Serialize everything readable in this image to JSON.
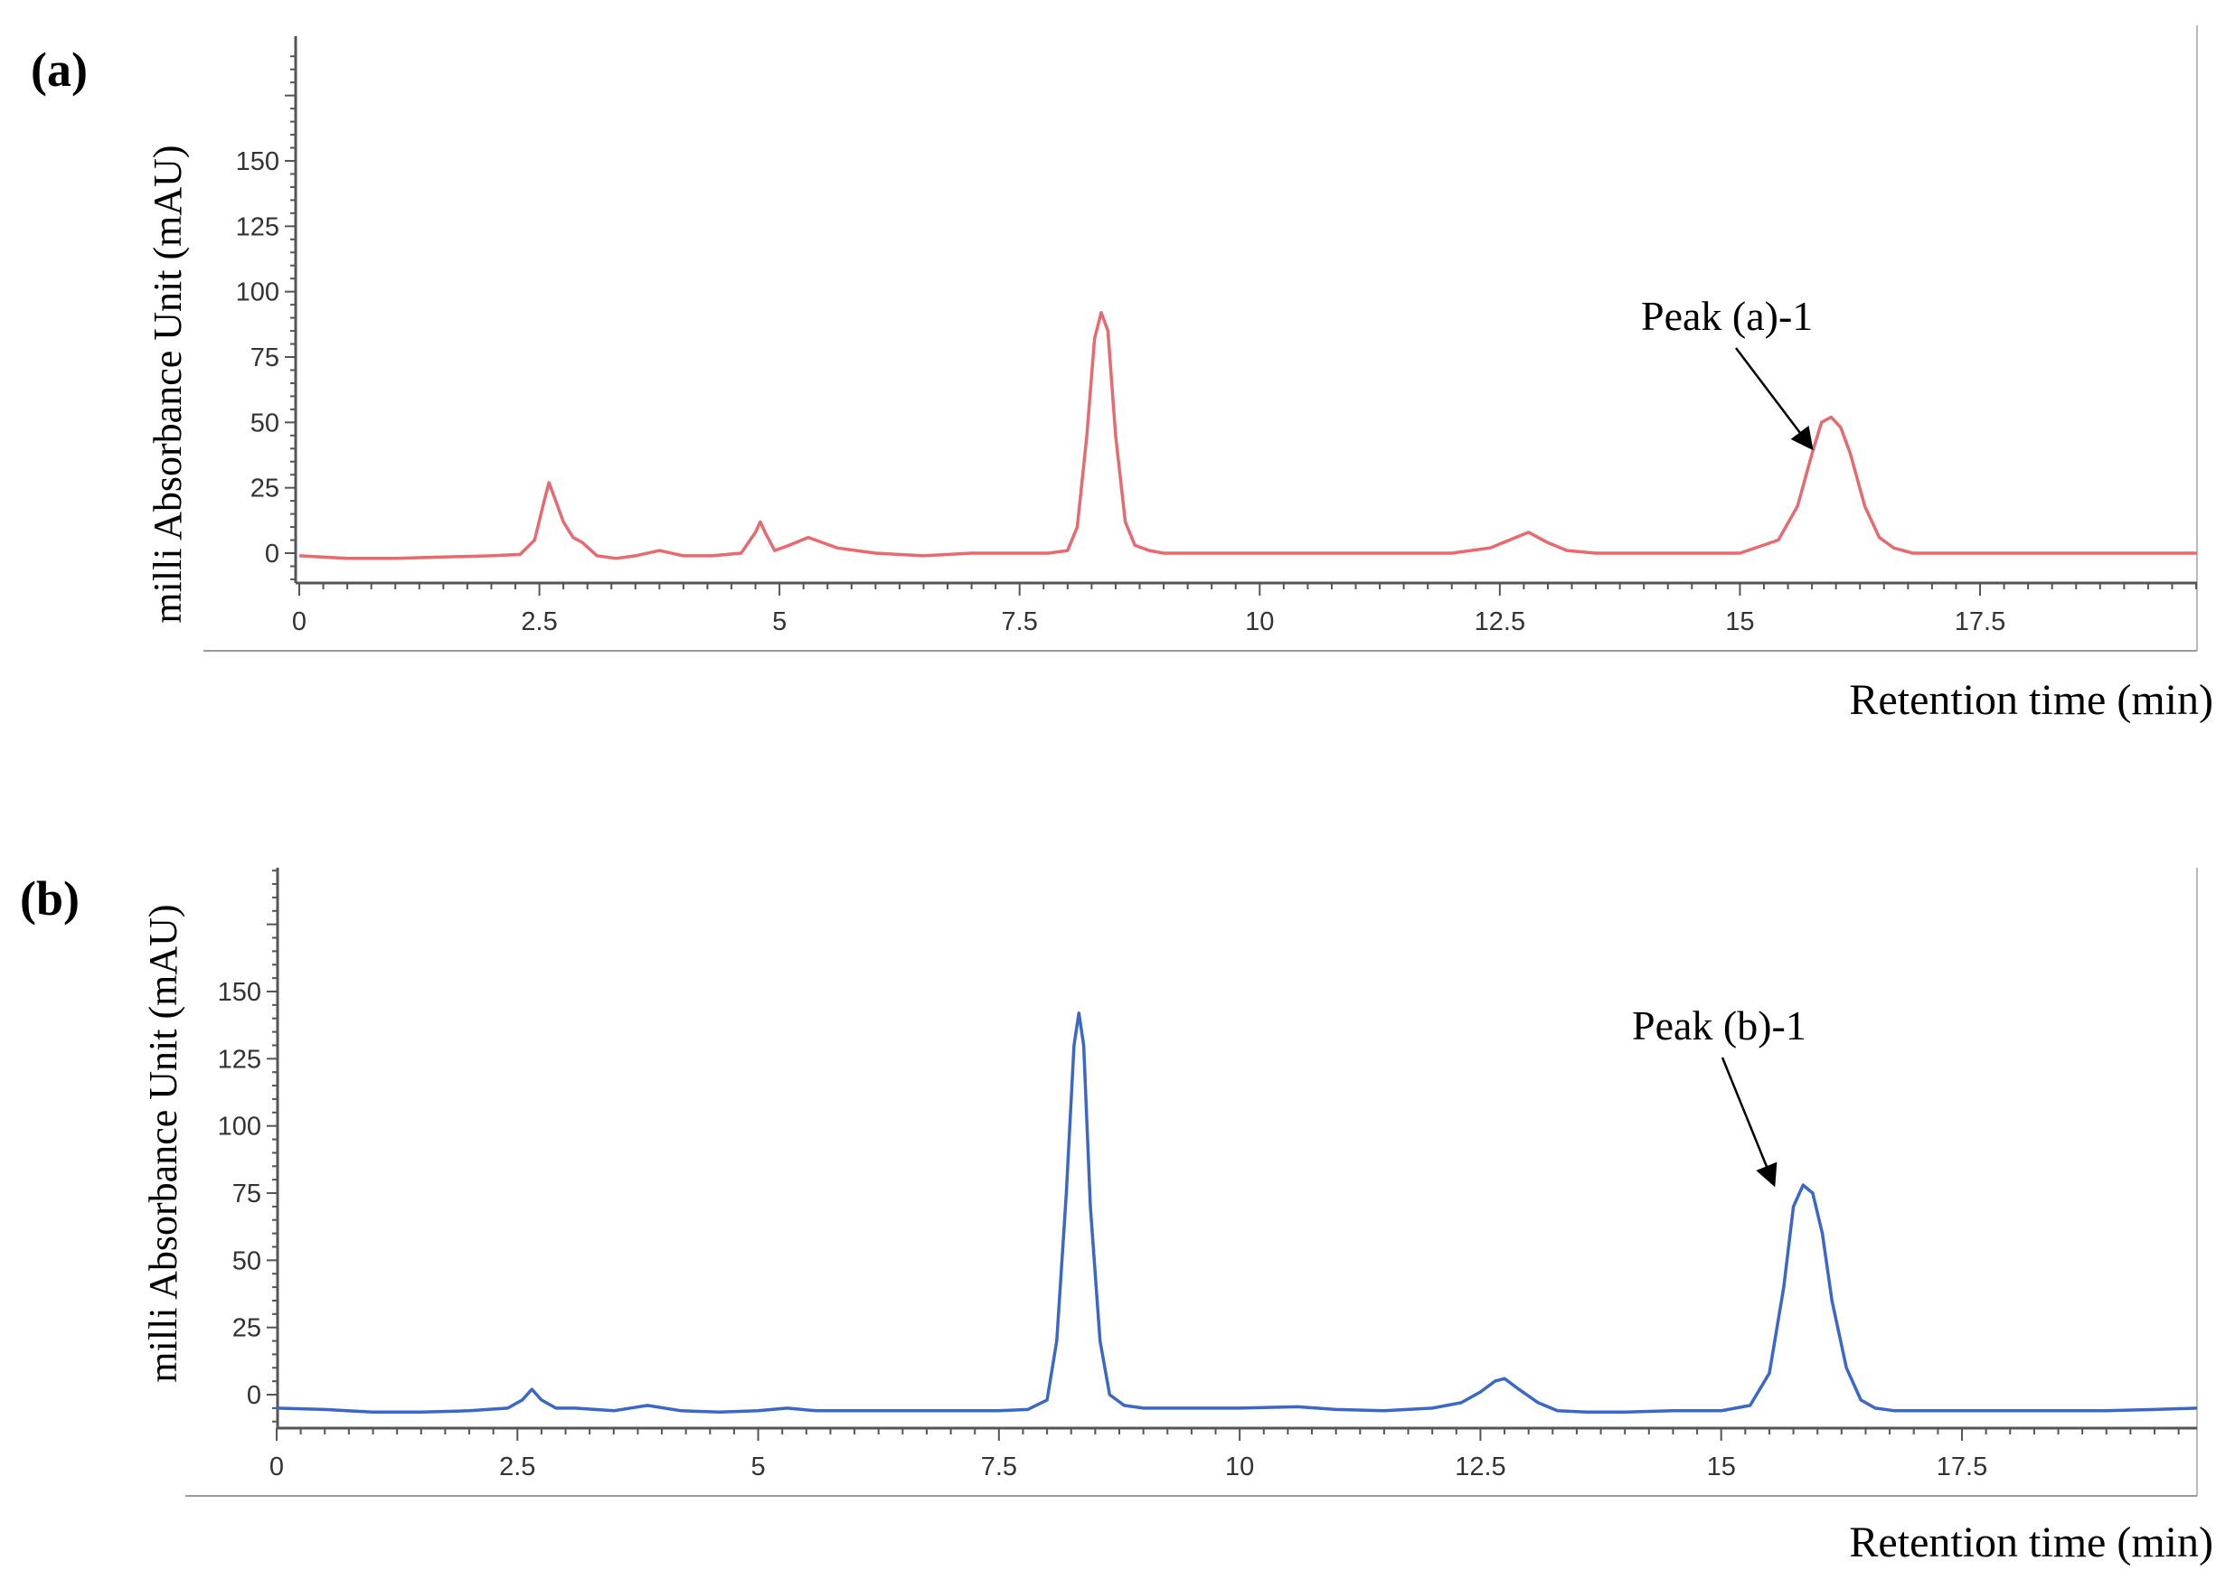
{
  "chart_data": [
    {
      "type": "line",
      "panel_label": "(a)",
      "xlabel": "Retention time (min)",
      "ylabel": "milli Absorbance Unit (mAU)",
      "xlim": [
        0,
        20
      ],
      "ylim": [
        -12,
        190
      ],
      "x_ticks": [
        0,
        2.5,
        5,
        7.5,
        10,
        12.5,
        15,
        17.5
      ],
      "x_tick_labels": [
        "0",
        "2.5",
        "5",
        "7.5",
        "10",
        "12.5",
        "15",
        "17.5"
      ],
      "y_ticks": [
        0,
        25,
        50,
        75,
        100,
        125,
        150
      ],
      "y_tick_labels": [
        "0",
        "25",
        "50",
        "75",
        "100",
        "125",
        "150"
      ],
      "grid": false,
      "series": [
        {
          "color": "#e8696e",
          "x": [
            0,
            0.5,
            1,
            1.5,
            2,
            2.3,
            2.45,
            2.55,
            2.6,
            2.65,
            2.75,
            2.85,
            2.95,
            3.1,
            3.3,
            3.5,
            3.75,
            4.0,
            4.3,
            4.6,
            4.75,
            4.8,
            4.85,
            4.95,
            5.1,
            5.3,
            5.45,
            5.6,
            5.8,
            6.0,
            6.5,
            7.0,
            7.2,
            7.5,
            7.8,
            8.0,
            8.1,
            8.2,
            8.28,
            8.35,
            8.42,
            8.5,
            8.6,
            8.7,
            8.85,
            9.0,
            9.5,
            10,
            11,
            12,
            12.4,
            12.6,
            12.8,
            13.0,
            13.2,
            13.5,
            14,
            14.5,
            15.0,
            15.4,
            15.6,
            15.75,
            15.85,
            15.95,
            16.05,
            16.15,
            16.3,
            16.45,
            16.6,
            16.8,
            17.0,
            17.5,
            18,
            18.5,
            19,
            19.5,
            20
          ],
          "y": [
            -1,
            -2,
            -2,
            -1.5,
            -1,
            -0.5,
            5,
            20,
            27,
            22,
            12,
            6,
            4,
            -1,
            -2,
            -1,
            1,
            -1,
            -1,
            0,
            8,
            12,
            8,
            1,
            3,
            6,
            4,
            2,
            1,
            0,
            -1,
            0,
            0,
            0,
            0,
            1,
            10,
            45,
            82,
            92,
            85,
            45,
            12,
            3,
            1,
            0,
            0,
            0,
            0,
            0,
            2,
            5,
            8,
            4,
            1,
            0,
            0,
            0,
            0,
            5,
            18,
            38,
            50,
            52,
            48,
            38,
            18,
            6,
            2,
            0,
            0,
            0,
            0,
            0,
            0,
            0,
            0
          ]
        }
      ],
      "annotations": [
        {
          "text": "Peak (a)-1",
          "points_to_x": 15.75,
          "points_to_y": 40
        }
      ]
    },
    {
      "type": "line",
      "panel_label": "(b)",
      "xlabel": "Retention time (min)",
      "ylabel": "milli Absorbance Unit (mAU)",
      "xlim": [
        0,
        20
      ],
      "ylim": [
        -12,
        200
      ],
      "x_ticks": [
        0,
        2.5,
        5,
        7.5,
        10,
        12.5,
        15,
        17.5
      ],
      "x_tick_labels": [
        "0",
        "2.5",
        "5",
        "7.5",
        "10",
        "12.5",
        "15",
        "17.5"
      ],
      "y_ticks": [
        0,
        25,
        50,
        75,
        100,
        125,
        150
      ],
      "y_tick_labels": [
        "0",
        "25",
        "50",
        "75",
        "100",
        "125",
        "150"
      ],
      "grid": false,
      "series": [
        {
          "color": "#3a67c8",
          "x": [
            0,
            0.5,
            1,
            1.5,
            2,
            2.4,
            2.55,
            2.65,
            2.75,
            2.9,
            3.1,
            3.5,
            3.85,
            4.2,
            4.6,
            5.0,
            5.3,
            5.6,
            6.0,
            6.5,
            7.0,
            7.5,
            7.8,
            8.0,
            8.1,
            8.2,
            8.28,
            8.33,
            8.38,
            8.45,
            8.55,
            8.65,
            8.8,
            9.0,
            9.5,
            10,
            10.6,
            11,
            11.5,
            12.0,
            12.3,
            12.5,
            12.65,
            12.75,
            12.9,
            13.1,
            13.3,
            13.6,
            14,
            14.5,
            15.0,
            15.3,
            15.5,
            15.65,
            15.75,
            15.85,
            15.95,
            16.05,
            16.15,
            16.3,
            16.45,
            16.6,
            16.8,
            17.0,
            17.5,
            18,
            18.5,
            19,
            19.5,
            20
          ],
          "y": [
            -5,
            -5.5,
            -6.5,
            -6.5,
            -6,
            -5,
            -2,
            2,
            -2,
            -5,
            -5,
            -6,
            -4,
            -6,
            -6.5,
            -6,
            -5,
            -6,
            -6,
            -6,
            -6,
            -6,
            -5.5,
            -2,
            20,
            75,
            130,
            142,
            130,
            70,
            20,
            0,
            -4,
            -5,
            -5,
            -5,
            -4.5,
            -5.5,
            -6,
            -5,
            -3,
            1,
            5,
            6,
            2,
            -3,
            -6,
            -6.5,
            -6.5,
            -6,
            -6,
            -4,
            8,
            40,
            70,
            78,
            75,
            60,
            35,
            10,
            -2,
            -5,
            -6,
            -6,
            -6,
            -6,
            -6,
            -6,
            -5.5,
            -5
          ]
        }
      ],
      "annotations": [
        {
          "text": "Peak (b)-1",
          "points_to_x": 15.55,
          "points_to_y": 78
        }
      ]
    }
  ]
}
